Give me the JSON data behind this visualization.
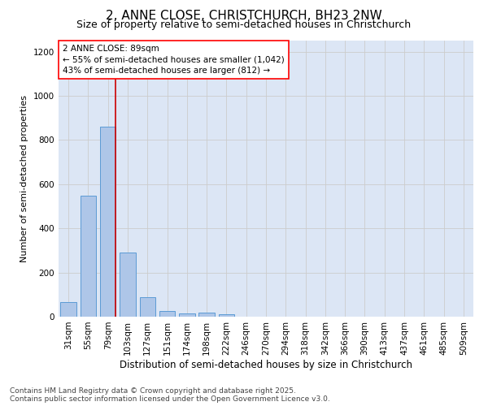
{
  "title": "2, ANNE CLOSE, CHRISTCHURCH, BH23 2NW",
  "subtitle": "Size of property relative to semi-detached houses in Christchurch",
  "xlabel": "Distribution of semi-detached houses by size in Christchurch",
  "ylabel": "Number of semi-detached properties",
  "categories": [
    "31sqm",
    "55sqm",
    "79sqm",
    "103sqm",
    "127sqm",
    "151sqm",
    "174sqm",
    "198sqm",
    "222sqm",
    "246sqm",
    "270sqm",
    "294sqm",
    "318sqm",
    "342sqm",
    "366sqm",
    "390sqm",
    "413sqm",
    "437sqm",
    "461sqm",
    "485sqm",
    "509sqm"
  ],
  "values": [
    68,
    548,
    862,
    291,
    88,
    27,
    15,
    18,
    10,
    0,
    0,
    0,
    0,
    0,
    0,
    0,
    0,
    0,
    0,
    0,
    0
  ],
  "bar_color": "#aec6e8",
  "bar_edge_color": "#5b9bd5",
  "vline_x_index": 2.4,
  "vline_color": "#cc0000",
  "annotation_box_text": "2 ANNE CLOSE: 89sqm\n← 55% of semi-detached houses are smaller (1,042)\n43% of semi-detached houses are larger (812) →",
  "ylim": [
    0,
    1250
  ],
  "yticks": [
    0,
    200,
    400,
    600,
    800,
    1000,
    1200
  ],
  "grid_color": "#cccccc",
  "background_color": "#dce6f5",
  "footer_text": "Contains HM Land Registry data © Crown copyright and database right 2025.\nContains public sector information licensed under the Open Government Licence v3.0.",
  "title_fontsize": 11,
  "subtitle_fontsize": 9,
  "xlabel_fontsize": 8.5,
  "ylabel_fontsize": 8,
  "tick_fontsize": 7.5,
  "annotation_fontsize": 7.5,
  "footer_fontsize": 6.5
}
